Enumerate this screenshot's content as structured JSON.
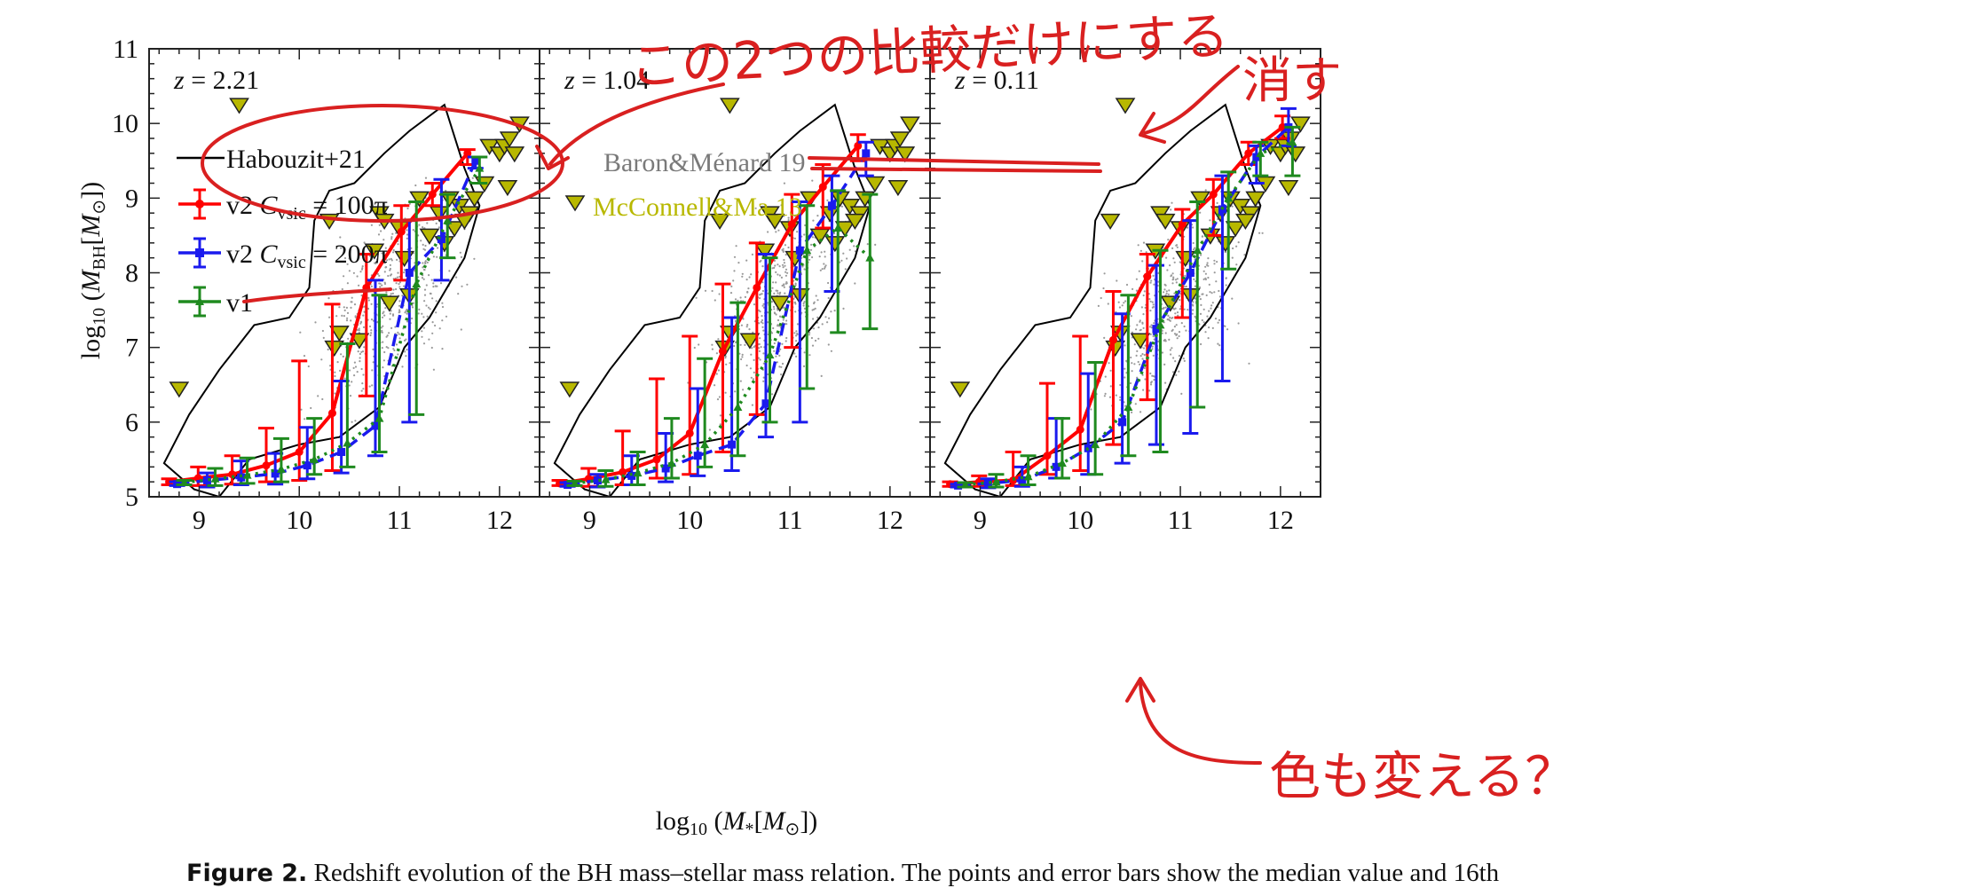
{
  "figure": {
    "caption_label": "Figure 2.",
    "caption_text": " Redshift evolution of the BH mass–stellar mass relation. The points and error bars show the median value and 16th"
  },
  "colors": {
    "v2_100": "#ff0000",
    "v2_200": "#1a1aee",
    "v1": "#1f8a1f",
    "mcconnell": "#b8b800",
    "habouzit": "#000000",
    "scatter": "#9a9a9a",
    "annotation": "#d92020"
  },
  "chart_data": [
    {
      "type": "line",
      "title": "z = 2.21",
      "panel_label": {
        "text": "z = 2.21",
        "var": "z",
        "rest": " = 2.21"
      },
      "xlabel": "log10(M*[M⊙])",
      "ylabel": "log10(MBH[M⊙])",
      "xlim": [
        8.5,
        12.4
      ],
      "ylim": [
        5,
        11
      ],
      "xticks": [
        9,
        10,
        11,
        12
      ],
      "yticks": [
        5,
        6,
        7,
        8,
        9,
        10,
        11
      ],
      "legend": [
        {
          "label": "Habouzit+21",
          "style": "black-line"
        },
        {
          "label_prefix": "v2 ",
          "label_var": "C",
          "label_sub": "vsic",
          "label_value": " = 100π",
          "series": "v2 Cvsic = 100π"
        },
        {
          "label_prefix": "v2 ",
          "label_var": "C",
          "label_sub": "vsic",
          "label_value": " = 200π",
          "series": "v2 Cvsic = 200π"
        },
        {
          "label": "v1",
          "series": "v1"
        }
      ],
      "series": [
        {
          "name": "v2 Cvsic = 100π",
          "color": "#ff0000",
          "style": "solid",
          "x": [
            8.7,
            8.99,
            9.33,
            9.67,
            10.0,
            10.33,
            10.67,
            11.02,
            11.33,
            11.68
          ],
          "y": [
            5.2,
            5.25,
            5.3,
            5.42,
            5.6,
            6.12,
            7.8,
            8.55,
            9.05,
            9.6
          ],
          "lo": [
            5.16,
            5.15,
            5.17,
            5.2,
            5.22,
            5.35,
            6.35,
            7.9,
            8.9,
            9.45
          ],
          "hi": [
            5.24,
            5.4,
            5.55,
            5.92,
            6.82,
            7.58,
            8.25,
            8.9,
            9.2,
            9.65
          ]
        },
        {
          "name": "v2 Cvsic = 200π",
          "color": "#1a1aee",
          "style": "dashed",
          "x": [
            8.78,
            9.08,
            9.42,
            9.76,
            10.08,
            10.42,
            10.76,
            11.1,
            11.42,
            11.76
          ],
          "y": [
            5.17,
            5.22,
            5.26,
            5.31,
            5.42,
            5.6,
            5.95,
            8.0,
            8.45,
            9.5
          ],
          "lo": [
            5.15,
            5.13,
            5.16,
            5.17,
            5.24,
            5.32,
            5.55,
            6.0,
            7.9,
            9.4
          ],
          "hi": [
            5.2,
            5.32,
            5.48,
            5.58,
            5.93,
            6.55,
            7.9,
            8.7,
            9.25,
            9.55
          ]
        },
        {
          "name": "v1",
          "color": "#1f8a1f",
          "style": "dotted",
          "x": [
            8.85,
            9.16,
            9.48,
            9.82,
            10.15,
            10.48,
            10.8,
            11.17,
            11.48,
            11.8
          ],
          "y": [
            5.19,
            5.24,
            5.29,
            5.37,
            5.5,
            5.72,
            6.05,
            7.85,
            8.7,
            9.4
          ],
          "lo": [
            5.16,
            5.15,
            5.18,
            5.2,
            5.3,
            5.4,
            5.6,
            6.1,
            8.2,
            9.2
          ],
          "hi": [
            5.22,
            5.38,
            5.52,
            5.78,
            6.05,
            7.05,
            7.7,
            8.95,
            9.05,
            9.55
          ]
        }
      ],
      "mcconnell_ma13": {
        "name": "McConnell&Ma 13",
        "x": [
          8.8,
          10.4,
          10.6,
          10.8,
          10.85,
          11.0,
          11.05,
          11.2,
          10.3,
          10.35,
          11.3,
          11.4,
          11.55,
          11.6,
          11.7,
          11.75,
          11.85,
          11.9,
          12.0,
          12.05,
          12.08,
          12.1,
          12.15,
          12.2,
          10.9,
          11.1,
          11.45,
          11.5,
          10.75,
          11.65
        ],
        "y": [
          6.45,
          7.2,
          7.1,
          8.8,
          8.7,
          8.6,
          8.2,
          9.0,
          8.7,
          7.0,
          8.5,
          8.8,
          8.6,
          8.9,
          8.8,
          9.0,
          9.2,
          9.7,
          9.6,
          9.7,
          9.15,
          9.8,
          9.6,
          10.0,
          7.6,
          7.7,
          8.4,
          9.0,
          8.3,
          8.7
        ]
      },
      "mcconnell_extra": {
        "x": [
          9.4
        ],
        "y": [
          10.25
        ]
      }
    },
    {
      "type": "line",
      "title": "z = 1.04",
      "panel_label": {
        "text": "z = 1.04",
        "var": "z",
        "rest": " = 1.04"
      },
      "xlim": [
        8.5,
        12.4
      ],
      "ylim": [
        5,
        11
      ],
      "xticks": [
        9,
        10,
        11,
        12
      ],
      "legend": [
        {
          "label": "Baron&Ménard 19",
          "style": "struck"
        },
        {
          "label": "McConnell&Ma 13",
          "style": "yellow-marker"
        }
      ],
      "series": [
        {
          "name": "v2 Cvsic = 100π",
          "color": "#ff0000",
          "style": "solid",
          "x": [
            8.7,
            8.99,
            9.33,
            9.67,
            10.0,
            10.33,
            10.67,
            11.02,
            11.33,
            11.68
          ],
          "y": [
            5.18,
            5.24,
            5.33,
            5.5,
            5.85,
            6.95,
            7.8,
            8.65,
            9.15,
            9.7
          ],
          "lo": [
            5.15,
            5.14,
            5.16,
            5.25,
            5.3,
            5.6,
            6.1,
            7.0,
            8.6,
            9.5
          ],
          "hi": [
            5.22,
            5.38,
            5.88,
            6.58,
            7.15,
            7.85,
            8.4,
            9.05,
            9.45,
            9.85
          ]
        },
        {
          "name": "v2 Cvsic = 200π",
          "color": "#1a1aee",
          "style": "dashed",
          "x": [
            8.78,
            9.08,
            9.42,
            9.76,
            10.08,
            10.42,
            10.76,
            11.1,
            11.42,
            11.76
          ],
          "y": [
            5.16,
            5.22,
            5.28,
            5.38,
            5.55,
            5.7,
            6.25,
            8.3,
            8.9,
            9.6
          ],
          "lo": [
            5.14,
            5.13,
            5.16,
            5.2,
            5.28,
            5.35,
            5.8,
            6.0,
            7.75,
            9.3
          ],
          "hi": [
            5.19,
            5.3,
            5.55,
            5.85,
            6.45,
            7.4,
            8.25,
            8.95,
            9.3,
            9.75
          ]
        },
        {
          "name": "v1",
          "color": "#1f8a1f",
          "style": "dotted",
          "x": [
            8.85,
            9.16,
            9.48,
            9.82,
            10.15,
            10.48,
            10.8,
            11.17,
            11.48,
            11.8
          ],
          "y": [
            5.18,
            5.23,
            5.32,
            5.45,
            5.7,
            6.2,
            6.9,
            8.3,
            8.6,
            8.2
          ],
          "lo": [
            5.15,
            5.14,
            5.16,
            5.25,
            5.4,
            5.55,
            6.0,
            6.45,
            7.2,
            7.25
          ],
          "hi": [
            5.21,
            5.35,
            5.6,
            6.05,
            6.85,
            7.6,
            8.2,
            8.9,
            9.1,
            9.05
          ]
        }
      ],
      "mcconnell_ma13": {
        "x": [
          8.8,
          10.4,
          10.6,
          10.8,
          10.85,
          11.0,
          11.05,
          11.2,
          10.3,
          10.35,
          11.3,
          11.4,
          11.55,
          11.6,
          11.7,
          11.75,
          11.85,
          11.9,
          12.0,
          12.05,
          12.08,
          12.1,
          12.15,
          12.2,
          10.9,
          11.1,
          11.45,
          11.5,
          10.75,
          11.65
        ],
        "y": [
          6.45,
          7.2,
          7.1,
          8.8,
          8.7,
          8.6,
          8.2,
          9.0,
          8.7,
          7.0,
          8.5,
          8.8,
          8.6,
          8.9,
          8.8,
          9.0,
          9.2,
          9.7,
          9.6,
          9.7,
          9.15,
          9.8,
          9.6,
          10.0,
          7.6,
          7.7,
          8.4,
          9.0,
          8.3,
          8.7
        ]
      },
      "mcconnell_extra": {
        "x": [
          10.4
        ],
        "y": [
          10.25
        ]
      }
    },
    {
      "type": "line",
      "title": "z = 0.11",
      "panel_label": {
        "text": "z = 0.11",
        "var": "z",
        "rest": " = 0.11"
      },
      "xlim": [
        8.5,
        12.4
      ],
      "ylim": [
        5,
        11
      ],
      "xticks": [
        9,
        10,
        11,
        12
      ],
      "series": [
        {
          "name": "v2 Cvsic = 100π",
          "color": "#ff0000",
          "style": "solid",
          "x": [
            8.7,
            8.99,
            9.33,
            9.67,
            10.0,
            10.33,
            10.67,
            11.02,
            11.33,
            11.68,
            12.02
          ],
          "y": [
            5.17,
            5.2,
            5.22,
            5.55,
            5.9,
            7.1,
            7.95,
            8.65,
            9.05,
            9.6,
            9.95
          ],
          "lo": [
            5.14,
            5.14,
            5.15,
            5.3,
            5.35,
            5.7,
            6.3,
            7.4,
            8.5,
            9.45,
            9.8
          ],
          "hi": [
            5.2,
            5.28,
            5.6,
            6.52,
            7.15,
            7.75,
            8.25,
            8.85,
            9.25,
            9.75,
            10.1
          ]
        },
        {
          "name": "v2 Cvsic = 200π",
          "color": "#1a1aee",
          "style": "dashed",
          "x": [
            8.78,
            9.08,
            9.42,
            9.76,
            10.08,
            10.42,
            10.76,
            11.1,
            11.42,
            11.76,
            12.08
          ],
          "y": [
            5.15,
            5.18,
            5.22,
            5.4,
            5.65,
            6.0,
            7.25,
            8.0,
            8.85,
            9.55,
            9.95
          ],
          "lo": [
            5.13,
            5.12,
            5.14,
            5.25,
            5.3,
            5.45,
            5.7,
            5.85,
            6.55,
            9.2,
            9.7
          ],
          "hi": [
            5.17,
            5.24,
            5.4,
            6.05,
            6.65,
            7.45,
            8.1,
            8.7,
            9.3,
            9.7,
            10.2
          ]
        },
        {
          "name": "v1",
          "color": "#1f8a1f",
          "style": "dotted",
          "x": [
            8.85,
            9.16,
            9.48,
            9.82,
            10.15,
            10.48,
            10.8,
            11.17,
            11.48,
            11.8,
            12.12
          ],
          "y": [
            5.16,
            5.2,
            5.27,
            5.45,
            5.7,
            6.2,
            7.3,
            8.3,
            9.0,
            9.6,
            9.75
          ],
          "lo": [
            5.13,
            5.13,
            5.16,
            5.25,
            5.3,
            5.55,
            5.6,
            6.2,
            8.05,
            9.3,
            9.3
          ],
          "hi": [
            5.19,
            5.3,
            5.55,
            6.05,
            6.8,
            7.7,
            8.3,
            8.95,
            9.35,
            9.75,
            9.95
          ]
        }
      ],
      "mcconnell_ma13": {
        "x": [
          8.8,
          10.4,
          10.6,
          10.8,
          10.85,
          11.0,
          11.05,
          11.2,
          10.3,
          10.35,
          11.3,
          11.4,
          11.55,
          11.6,
          11.7,
          11.75,
          11.85,
          11.9,
          12.0,
          12.05,
          12.08,
          12.1,
          12.15,
          12.2,
          10.9,
          11.1,
          11.45,
          11.5,
          10.75,
          11.65
        ],
        "y": [
          6.45,
          7.2,
          7.1,
          8.8,
          8.7,
          8.6,
          8.2,
          9.0,
          8.7,
          7.0,
          8.5,
          8.8,
          8.6,
          8.9,
          8.8,
          9.0,
          9.2,
          9.7,
          9.6,
          9.7,
          9.15,
          9.8,
          9.6,
          10.0,
          7.6,
          7.7,
          8.4,
          9.0,
          8.3,
          8.7
        ]
      },
      "mcconnell_extra": {
        "x": [
          10.45
        ],
        "y": [
          10.25
        ]
      }
    }
  ],
  "habouzit_contour": {
    "x": [
      8.65,
      8.9,
      9.2,
      9.55,
      9.9,
      10.1,
      10.15,
      10.3,
      10.55,
      10.85,
      11.1,
      11.45,
      11.65,
      11.8,
      11.65,
      11.3,
      11.05,
      10.8,
      10.4,
      10.0,
      9.5,
      9.2,
      8.95,
      8.65
    ],
    "y": [
      5.45,
      6.1,
      6.7,
      7.3,
      7.4,
      7.8,
      8.7,
      9.1,
      9.2,
      9.6,
      9.9,
      10.25,
      9.4,
      8.9,
      8.2,
      7.4,
      7.0,
      6.2,
      5.8,
      5.7,
      5.5,
      5.0,
      5.1,
      5.45
    ]
  },
  "scatter_cloud": {
    "center_x": 10.9,
    "center_y": 7.6,
    "count": 520
  },
  "annotations": {
    "top": "この2つの比較だけにする",
    "mid": "消す",
    "bottom": "色も変える？"
  }
}
